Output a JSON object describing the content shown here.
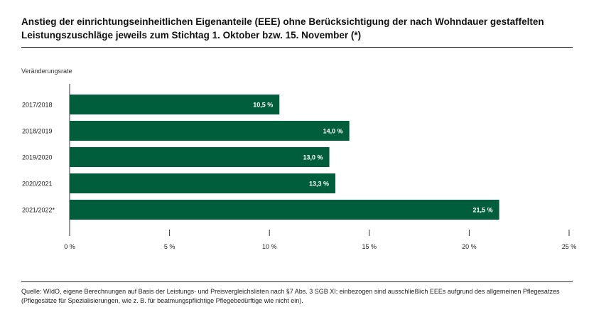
{
  "title": "Anstieg der einrichtungseinheitlichen Eigenanteile (EEE) ohne Berücksichtigung der nach Wohndauer gestaffelten Leistungszuschläge jeweils zum Stichtag 1. Oktober bzw. 15. November (*)",
  "source": "Quelle: WIdO, eigene Berechnungen auf Basis der Leistungs- und Preisvergleichslisten nach §7 Abs. 3 SGB XI; einbezogen sind ausschließlich EEEs aufgrund des allgemeinen Pflegesatzes (Pflegesätze für Spezialisierungen, wie z. B. für beatmungspflichtige Pflegebedürftige wie nicht ein).",
  "colors": {
    "bar": "#005e3c",
    "axis": "#333333",
    "bar_label": "#ffffff"
  },
  "chart_data": {
    "type": "bar",
    "orientation": "horizontal",
    "ylabel": "Veränderungsrate",
    "categories": [
      "2017/2018",
      "2018/2019",
      "2019/2020",
      "2020/2021",
      "2021/2022*"
    ],
    "values": [
      10.5,
      14.0,
      13.0,
      13.3,
      21.5
    ],
    "value_labels": [
      "10,5 %",
      "14,0 %",
      "13,0 %",
      "13,3 %",
      "21,5 %"
    ],
    "xlim": [
      0,
      25
    ],
    "xticks": [
      0,
      5,
      10,
      15,
      20,
      25
    ],
    "xtick_labels": [
      "0 %",
      "5 %",
      "10 %",
      "15 %",
      "20 %",
      "25 %"
    ],
    "grid": false,
    "legend": "none"
  }
}
